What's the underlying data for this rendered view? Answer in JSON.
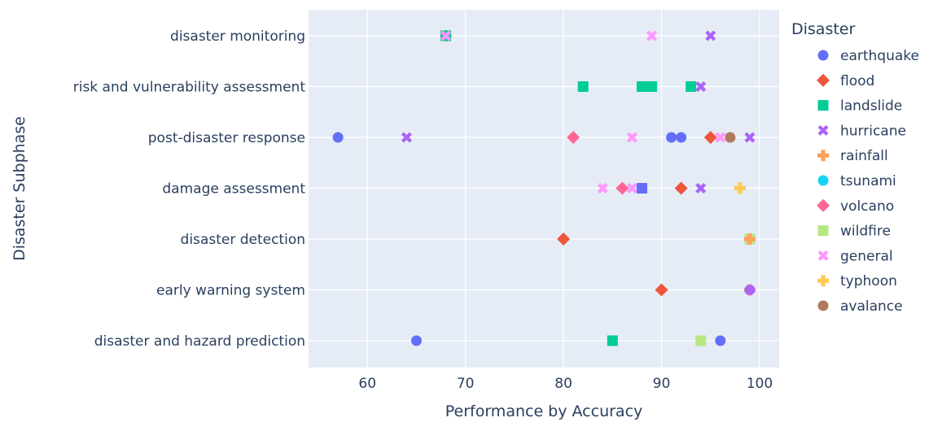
{
  "chart_data": {
    "type": "scatter",
    "xlabel": "Performance by Accuracy",
    "ylabel": "Disaster Subphase",
    "xlim": [
      54,
      102
    ],
    "x_ticks": [
      60,
      70,
      80,
      90,
      100
    ],
    "categories": [
      "disaster monitoring",
      "risk and vulnerability assessment",
      "post-disaster response",
      "damage assessment",
      "disaster detection",
      "early warning system",
      "disaster and hazard prediction"
    ],
    "legend_title": "Disaster",
    "legend_position": "right",
    "grid": true,
    "background_color": "#e5ecf6",
    "series": [
      {
        "name": "earthquake",
        "color": "#636efa",
        "symbol": "circle",
        "points": [
          {
            "x": 57,
            "y": "post-disaster response"
          },
          {
            "x": 91,
            "y": "post-disaster response"
          },
          {
            "x": 92,
            "y": "post-disaster response"
          },
          {
            "x": 65,
            "y": "disaster and hazard prediction"
          },
          {
            "x": 96,
            "y": "disaster and hazard prediction"
          }
        ]
      },
      {
        "name": "flood",
        "color": "#ef553b",
        "symbol": "diamond",
        "points": [
          {
            "x": 95,
            "y": "post-disaster response"
          },
          {
            "x": 92,
            "y": "damage assessment"
          },
          {
            "x": 80,
            "y": "disaster detection"
          },
          {
            "x": 90,
            "y": "early warning system"
          }
        ]
      },
      {
        "name": "landslide",
        "color": "#00cc96",
        "symbol": "square",
        "points": [
          {
            "x": 82,
            "y": "risk and vulnerability assessment"
          },
          {
            "x": 88,
            "y": "risk and vulnerability assessment"
          },
          {
            "x": 89,
            "y": "risk and vulnerability assessment"
          },
          {
            "x": 93,
            "y": "risk and vulnerability assessment"
          },
          {
            "x": 85,
            "y": "disaster and hazard prediction"
          }
        ]
      },
      {
        "name": "hurricane",
        "color": "#ab63fa",
        "symbol": "x",
        "points": [
          {
            "x": 95,
            "y": "disaster monitoring"
          },
          {
            "x": 94,
            "y": "risk and vulnerability assessment"
          },
          {
            "x": 64,
            "y": "post-disaster response"
          },
          {
            "x": 99,
            "y": "post-disaster response"
          },
          {
            "x": 94,
            "y": "damage assessment"
          }
        ]
      },
      {
        "name": "rainfall",
        "color": "#ffa15a",
        "symbol": "cross",
        "points": [
          {
            "x": 68,
            "y": "disaster monitoring"
          },
          {
            "x": 98,
            "y": "damage assessment"
          },
          {
            "x": 99,
            "y": "disaster detection"
          },
          {
            "x": 99,
            "y": "early warning system"
          }
        ]
      },
      {
        "name": "tsunami",
        "color": "#19d3f3",
        "symbol": "circle",
        "points": []
      },
      {
        "name": "volcano",
        "color": "#ff6692",
        "symbol": "diamond",
        "points": [
          {
            "x": 81,
            "y": "post-disaster response"
          },
          {
            "x": 86,
            "y": "damage assessment"
          }
        ]
      },
      {
        "name": "wildfire",
        "color": "#b6e880",
        "symbol": "square",
        "points": [
          {
            "x": 99,
            "y": "disaster detection"
          },
          {
            "x": 94,
            "y": "disaster and hazard prediction"
          }
        ]
      },
      {
        "name": "general",
        "color": "#ff97ff",
        "symbol": "x",
        "points": [
          {
            "x": 89,
            "y": "disaster monitoring"
          },
          {
            "x": 87,
            "y": "post-disaster response"
          },
          {
            "x": 96,
            "y": "post-disaster response"
          },
          {
            "x": 84,
            "y": "damage assessment"
          },
          {
            "x": 87,
            "y": "damage assessment"
          }
        ]
      },
      {
        "name": "typhoon",
        "color": "#fecb52",
        "symbol": "cross",
        "points": []
      },
      {
        "name": "avalance",
        "color": "#b07a5f",
        "symbol": "circle",
        "points": [
          {
            "x": 97,
            "y": "post-disaster response"
          }
        ]
      }
    ],
    "overlay_points": [
      {
        "x": 68,
        "y": "disaster monitoring",
        "color": "#00cc96",
        "symbol": "square"
      },
      {
        "x": 68,
        "y": "disaster monitoring",
        "color": "#ff97ff",
        "symbol": "x"
      },
      {
        "x": 98,
        "y": "damage assessment",
        "color": "#fecb52",
        "symbol": "cross"
      },
      {
        "x": 88,
        "y": "damage assessment",
        "color": "#636efa",
        "symbol": "square"
      },
      {
        "x": 99,
        "y": "disaster detection",
        "color": "#ffa15a",
        "symbol": "cross"
      },
      {
        "x": 99,
        "y": "early warning system",
        "color": "#ab63fa",
        "symbol": "circle"
      }
    ]
  }
}
